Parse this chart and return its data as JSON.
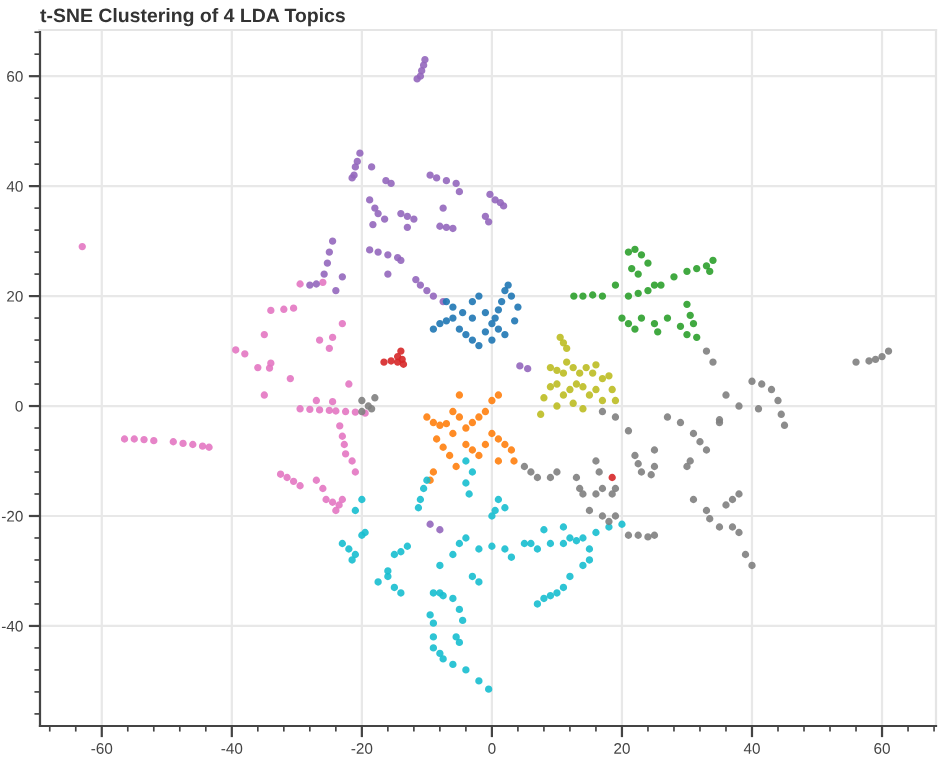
{
  "chart_data": {
    "type": "scatter",
    "title": "t-SNE Clustering of 4 LDA Topics",
    "marker": "circle",
    "grid": true,
    "xlim": [
      -69.5,
      68.3
    ],
    "ylim": [
      -58.2,
      68.4
    ],
    "xticks": [
      -60,
      -40,
      -20,
      0,
      20,
      40,
      60,
      {
        "value": -68,
        "label": null
      },
      {
        "value": -64,
        "label": null
      },
      {
        "value": -56,
        "label": null
      },
      {
        "value": -52,
        "label": null
      },
      {
        "value": -48,
        "label": null
      },
      {
        "value": -44,
        "label": null
      },
      {
        "value": -36,
        "label": null
      },
      {
        "value": -32,
        "label": null
      },
      {
        "value": -28,
        "label": null
      },
      {
        "value": -24,
        "label": null
      },
      {
        "value": -16,
        "label": null
      },
      {
        "value": -12,
        "label": null
      },
      {
        "value": -8,
        "label": null
      },
      {
        "value": -4,
        "label": null
      },
      {
        "value": 4,
        "label": null
      },
      {
        "value": 8,
        "label": null
      },
      {
        "value": 12,
        "label": null
      },
      {
        "value": 16,
        "label": null
      },
      {
        "value": 24,
        "label": null
      },
      {
        "value": 28,
        "label": null
      },
      {
        "value": 32,
        "label": null
      },
      {
        "value": 36,
        "label": null
      },
      {
        "value": 44,
        "label": null
      },
      {
        "value": 48,
        "label": null
      },
      {
        "value": 52,
        "label": null
      },
      {
        "value": 56,
        "label": null
      },
      {
        "value": 64,
        "label": null
      },
      {
        "value": 68,
        "label": null
      }
    ],
    "yticks": [
      -40,
      -20,
      0,
      20,
      40,
      60,
      {
        "value": -56,
        "label": null
      },
      {
        "value": -52,
        "label": null
      },
      {
        "value": -48,
        "label": null
      },
      {
        "value": -44,
        "label": null
      },
      {
        "value": -36,
        "label": null
      },
      {
        "value": -32,
        "label": null
      },
      {
        "value": -28,
        "label": null
      },
      {
        "value": -24,
        "label": null
      },
      {
        "value": -16,
        "label": null
      },
      {
        "value": -12,
        "label": null
      },
      {
        "value": -8,
        "label": null
      },
      {
        "value": -4,
        "label": null
      },
      {
        "value": 4,
        "label": null
      },
      {
        "value": 8,
        "label": null
      },
      {
        "value": 12,
        "label": null
      },
      {
        "value": 16,
        "label": null
      },
      {
        "value": 24,
        "label": null
      },
      {
        "value": 28,
        "label": null
      },
      {
        "value": 32,
        "label": null
      },
      {
        "value": 36,
        "label": null
      },
      {
        "value": 44,
        "label": null
      },
      {
        "value": 48,
        "label": null
      },
      {
        "value": 52,
        "label": null
      },
      {
        "value": 56,
        "label": null
      },
      {
        "value": 64,
        "label": null
      },
      {
        "value": 68,
        "label": null
      }
    ],
    "series": [
      {
        "color": "#e377c2",
        "x": [
          -63,
          -56.5,
          -55,
          -53.5,
          -52,
          -49,
          -47.5,
          -46,
          -44.5,
          -43.5,
          -32.5,
          -31.5,
          -30.5,
          -29.5,
          -27,
          -26,
          -25.5,
          -24.5,
          -23.5,
          -23,
          -24,
          -29.5,
          -28,
          -26.5,
          -25,
          -24,
          -22.5,
          -21,
          -19.5,
          -27,
          -24.5,
          -23.4,
          -23,
          -22.7,
          -22.5,
          -21.5,
          -21,
          -39.4,
          -38,
          -34.2,
          -34,
          -35,
          -34,
          -32,
          -30.5,
          -29.5,
          -26,
          -26.5,
          -24.5,
          -25,
          -22,
          -23,
          -31,
          -36,
          -35
        ],
        "values": [
          29,
          -6,
          -6,
          -6.1,
          -6.3,
          -6.5,
          -6.8,
          -7,
          -7.3,
          -7.5,
          -12.4,
          -13,
          -13.7,
          -14.5,
          -13.5,
          -15,
          -17,
          -17.5,
          -18,
          -17,
          -19,
          -0.5,
          -0.6,
          -0.7,
          -0.8,
          -0.9,
          -1,
          -1.1,
          -1.3,
          1,
          0.8,
          -3.6,
          -5.5,
          -7,
          -8.7,
          -10,
          -12,
          10.2,
          9.5,
          6.9,
          7.8,
          13,
          17.4,
          17.6,
          17.8,
          22.2,
          22.5,
          12,
          12.5,
          10.5,
          4,
          15,
          5,
          7,
          2
        ]
      },
      {
        "color": "#9467bd",
        "x": [
          -11,
          -10.8,
          -10.5,
          -10.3,
          -11.5,
          -21.2,
          -21,
          -20.7,
          -20.3,
          -21.5,
          -18.5,
          -16.3,
          -15.5,
          -18.8,
          -18,
          -17.5,
          -16.5,
          -18.3,
          -14,
          -13,
          -12,
          -13,
          -9.5,
          -8.5,
          -7,
          -5.5,
          -5,
          -8,
          -7,
          -6,
          -7.5,
          -18.8,
          -17.5,
          -16,
          -14.5,
          -14,
          -16,
          -11.7,
          -11,
          -10,
          -9,
          -7.5,
          -25.8,
          -25.3,
          -25,
          -24.5,
          -23,
          -24,
          -28,
          -27,
          -0.3,
          0.5,
          1.3,
          1.8,
          -1,
          -0.5,
          -9.5,
          -8,
          4.3,
          5.5
        ],
        "values": [
          60,
          61,
          62,
          63,
          59.5,
          42,
          43.5,
          44.5,
          46,
          41.5,
          43.5,
          41,
          40.5,
          37.5,
          36,
          35,
          34,
          33,
          35,
          34.5,
          34,
          32.5,
          42,
          41.5,
          41,
          40.5,
          39,
          32.7,
          32.5,
          32.3,
          36,
          28.4,
          28,
          27.5,
          27,
          26.5,
          24,
          23,
          22,
          21,
          20,
          19,
          24,
          26,
          28,
          30,
          23.5,
          21,
          22,
          22.2,
          38.5,
          37.5,
          37,
          36.4,
          34.5,
          33.5,
          -21.5,
          -22.5,
          7.3,
          6.8
        ]
      },
      {
        "color": "#1f77b4",
        "x": [
          -9,
          -8,
          -7,
          -6,
          -5,
          -4,
          -3,
          -2,
          -6,
          -4.5,
          -3,
          -2,
          -1,
          0,
          0.5,
          1,
          1.5,
          2,
          2.5,
          3,
          1,
          2,
          3.5,
          -1,
          0,
          -7,
          -3,
          4
        ],
        "values": [
          14,
          15,
          15.5,
          16,
          14,
          13,
          12,
          11,
          18,
          17,
          19,
          20,
          17,
          15,
          16,
          17.5,
          19,
          21,
          22,
          20,
          14,
          13,
          15.5,
          13.5,
          12,
          19,
          16,
          18
        ]
      },
      {
        "color": "#d62728",
        "x": [
          -16.6,
          -15.5,
          -14.5,
          -13.8,
          -14,
          -13.6,
          -14.5,
          18.5
        ],
        "values": [
          8,
          8.2,
          8,
          8.5,
          10,
          7.6,
          9,
          -13
        ]
      },
      {
        "color": "#2ca02c",
        "x": [
          12.6,
          14,
          15.5,
          17,
          21,
          22,
          23,
          24,
          21.5,
          22.5,
          25,
          19,
          21,
          22.5,
          24,
          26,
          28,
          30,
          31.5,
          33,
          34,
          33.5,
          20,
          21,
          22,
          23,
          25,
          25.5,
          27,
          30,
          30.5,
          31,
          30,
          31.5,
          29
        ],
        "values": [
          20,
          20,
          20.2,
          20,
          28,
          28.5,
          27.5,
          26,
          25,
          24,
          22,
          22,
          20,
          20.5,
          21,
          22,
          23.5,
          24.5,
          25,
          25.5,
          26.5,
          24.5,
          16,
          15,
          14,
          16,
          15,
          13.5,
          16,
          18.5,
          16.5,
          15,
          13,
          12.5,
          14.5
        ]
      },
      {
        "color": "#bcbd22",
        "x": [
          10.5,
          11,
          11.5,
          9,
          10,
          11,
          11.5,
          12.5,
          13.5,
          14.5,
          15.5,
          16,
          17,
          18,
          9,
          10,
          11,
          12,
          13,
          14,
          15,
          16,
          17,
          8,
          10,
          12.5,
          7.5,
          14,
          18.5,
          19
        ],
        "values": [
          12.5,
          11.5,
          10.5,
          7,
          6.5,
          6,
          8,
          7,
          6,
          7,
          6,
          7.5,
          5,
          5.5,
          3.5,
          4,
          2,
          3,
          4,
          3.5,
          2,
          3,
          1,
          1.5,
          0,
          0.5,
          -1.5,
          -0.5,
          3,
          1
        ]
      },
      {
        "color": "#ff7f0e",
        "x": [
          -10,
          -9,
          -8,
          -7,
          -6,
          -5,
          -8.5,
          -7.5,
          -6.5,
          -5.5,
          -4,
          -3,
          -2,
          -1,
          0,
          1,
          -4,
          -3,
          -2,
          -1,
          0,
          1,
          2,
          3,
          -6,
          -5,
          3.4,
          1,
          -9,
          -9.5
        ],
        "values": [
          -2,
          -3,
          -3.5,
          -3.2,
          -1,
          -2,
          -6,
          -7.5,
          -9,
          -11,
          -4,
          -3,
          -2,
          -1,
          1,
          2,
          -7,
          -8,
          -9,
          -7,
          -5,
          -6,
          -7,
          -8,
          -5,
          2,
          -10,
          -10,
          -12,
          -13.5
        ]
      },
      {
        "color": "#17becf",
        "x": [
          -10,
          -10.5,
          -11,
          -11.3,
          -20,
          -21,
          -23,
          -22,
          -21.5,
          -21,
          -20,
          -19.5,
          -17.5,
          -16,
          -15,
          -14,
          -16,
          -13,
          -14,
          -15,
          -9,
          -8,
          -7.5,
          -6,
          -5,
          -4.5,
          -9.5,
          -9,
          -9,
          -8,
          -7.5,
          -6,
          -4,
          -2,
          -0.5,
          -9,
          -5,
          -5.5,
          -8,
          -6,
          -5,
          -4,
          -3,
          -2,
          -4,
          -3.5,
          0,
          0.5,
          2,
          1,
          -2,
          0,
          2,
          3,
          5,
          6,
          7,
          8,
          9,
          11,
          12,
          13,
          14,
          15,
          16,
          18,
          20,
          11,
          7,
          8,
          9,
          10,
          11,
          12,
          14,
          15,
          -4,
          -3
        ],
        "values": [
          -13.5,
          -15,
          -17,
          -18.5,
          -17,
          -19,
          -25,
          -26,
          -28,
          -27,
          -23.5,
          -23,
          -32,
          -31,
          -33,
          -34,
          -30,
          -25.5,
          -26.5,
          -27,
          -34,
          -34,
          -34.5,
          -35,
          -37,
          -39,
          -38,
          -39.5,
          -44,
          -45,
          -46,
          -47,
          -48,
          -50,
          -51.5,
          -42,
          -43,
          -42,
          -29,
          -27,
          -25,
          -24,
          -31,
          -32,
          -14,
          -16,
          -20,
          -19,
          -18.5,
          -17,
          -26,
          -25.5,
          -26,
          -27.5,
          -25,
          -25,
          -26,
          -22.5,
          -25,
          -25,
          -24,
          -24.5,
          -24,
          -26,
          -23,
          -22,
          -21.5,
          -22,
          -36,
          -35,
          -34.5,
          -34,
          -33,
          -31,
          -29,
          -28,
          -10,
          -12
        ]
      },
      {
        "color": "#7f7f7f",
        "x": [
          -20,
          -19,
          -18.5,
          -18,
          -20,
          5,
          6,
          7,
          9,
          10,
          13,
          13.5,
          16,
          17,
          18.5,
          19,
          17,
          15,
          14,
          17,
          19,
          21,
          22,
          22.5,
          23,
          24.5,
          25,
          21,
          22.5,
          24,
          25,
          18,
          19,
          16,
          16.5,
          25,
          30,
          30.5,
          31,
          32,
          33,
          35,
          31,
          33,
          33.5,
          35,
          37,
          38,
          38,
          37,
          36,
          39,
          40,
          40,
          41.5,
          43,
          44,
          44.5,
          45,
          41,
          35,
          56,
          58,
          59,
          60,
          61,
          33,
          34,
          36,
          38,
          27,
          29
        ],
        "values": [
          1,
          0,
          -0.5,
          1.5,
          -1,
          -11,
          -12,
          -13,
          -13,
          -12,
          -13,
          -15,
          -16,
          -15,
          -16,
          -15,
          -20,
          -19,
          -16,
          -1,
          -2,
          -4.5,
          -9,
          -10.5,
          -12,
          -12.5,
          -11,
          -23.5,
          -23.5,
          -23.8,
          -23.5,
          -21,
          -20,
          -10,
          -12,
          -8,
          -11,
          -10,
          -5,
          -6.5,
          -8,
          -3,
          -17,
          -19,
          -20.5,
          -22,
          -22,
          -23,
          -16,
          -17,
          -18,
          -27,
          -29,
          4.5,
          4,
          3,
          1,
          -1.5,
          -3.5,
          -0.5,
          -2.5,
          8,
          8.2,
          8.5,
          9,
          10,
          10,
          8,
          2,
          0,
          -2,
          -3
        ]
      }
    ]
  }
}
